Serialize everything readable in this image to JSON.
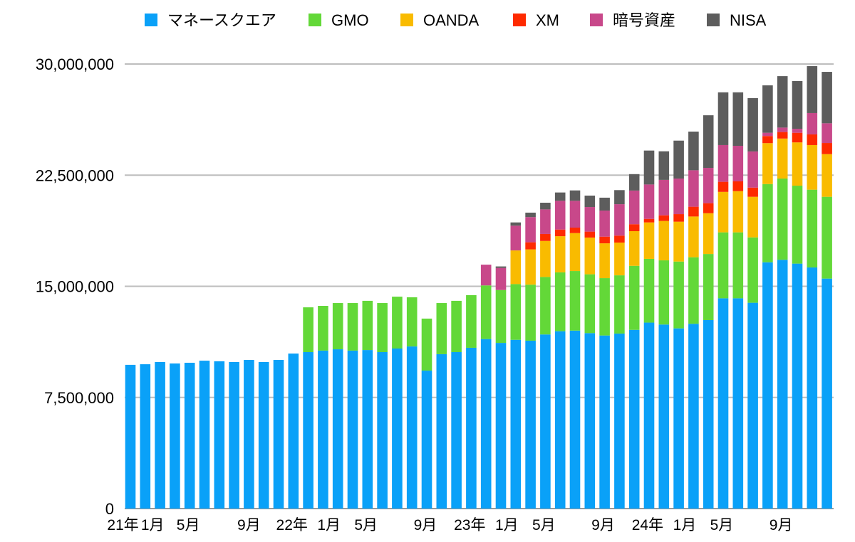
{
  "chart_data": {
    "type": "bar",
    "stacked": true,
    "title": "",
    "xlabel": "",
    "ylabel": "",
    "ylim": [
      0,
      30000000
    ],
    "y_ticks": [
      0,
      7500000,
      15000000,
      22500000,
      30000000
    ],
    "y_tick_labels": [
      "0",
      "7,500,000",
      "15,000,000",
      "22,500,000",
      "30,000,000"
    ],
    "grid": true,
    "legend_position": "top",
    "x_tick_labels": [
      {
        "label": "21年",
        "index": -0.5
      },
      {
        "label": "1月",
        "index": 1.5
      },
      {
        "label": "5月",
        "index": 3.9
      },
      {
        "label": "9月",
        "index": 8
      },
      {
        "label": "22年",
        "index": 10.9
      },
      {
        "label": "1月",
        "index": 13.4
      },
      {
        "label": "5月",
        "index": 15.9
      },
      {
        "label": "9月",
        "index": 19.9
      },
      {
        "label": "23年",
        "index": 22.9
      },
      {
        "label": "1月",
        "index": 25.4
      },
      {
        "label": "5月",
        "index": 27.9
      },
      {
        "label": "9月",
        "index": 31.9
      },
      {
        "label": "24年",
        "index": 34.9
      },
      {
        "label": "1月",
        "index": 37.4
      },
      {
        "label": "5月",
        "index": 39.9
      },
      {
        "label": "9月",
        "index": 43.9
      }
    ],
    "series": [
      {
        "name": "マネースクエア",
        "color": "#0aa1f8",
        "values": [
          9700000,
          9740000,
          9890000,
          9790000,
          9840000,
          9980000,
          9940000,
          9890000,
          10030000,
          9890000,
          10030000,
          10460000,
          10560000,
          10660000,
          10750000,
          10660000,
          10700000,
          10560000,
          10800000,
          10940000,
          9310000,
          10420000,
          10560000,
          10850000,
          11440000,
          11180000,
          11390000,
          11330000,
          11750000,
          11970000,
          12010000,
          11840000,
          11680000,
          11810000,
          12060000,
          12550000,
          12420000,
          12160000,
          12470000,
          12720000,
          14190000,
          14190000,
          13890000,
          16620000,
          16790000,
          16530000,
          16270000,
          15520000
        ]
      },
      {
        "name": "GMO",
        "color": "#63d838",
        "values": [
          0,
          0,
          0,
          0,
          0,
          0,
          0,
          0,
          0,
          0,
          0,
          0,
          3020000,
          3020000,
          3120000,
          3210000,
          3320000,
          3310000,
          3500000,
          3320000,
          3510000,
          3450000,
          3460000,
          3550000,
          3620000,
          3570000,
          3760000,
          3780000,
          3880000,
          3970000,
          4020000,
          3970000,
          3870000,
          3930000,
          4320000,
          4300000,
          4330000,
          4510000,
          4490000,
          4460000,
          4450000,
          4450000,
          4410000,
          5280000,
          5480000,
          5260000,
          5250000,
          5520000
        ]
      },
      {
        "name": "OANDA",
        "color": "#f9bb00",
        "values": [
          0,
          0,
          0,
          0,
          0,
          0,
          0,
          0,
          0,
          0,
          0,
          0,
          0,
          0,
          0,
          0,
          0,
          0,
          0,
          0,
          0,
          0,
          0,
          0,
          0,
          0,
          2270000,
          2380000,
          2430000,
          2440000,
          2560000,
          2480000,
          2350000,
          2210000,
          2340000,
          2460000,
          2660000,
          2690000,
          2750000,
          2750000,
          2730000,
          2780000,
          2740000,
          2760000,
          2700000,
          2920000,
          3010000,
          2880000
        ]
      },
      {
        "name": "XM",
        "color": "#fe2a00",
        "values": [
          0,
          0,
          0,
          0,
          0,
          0,
          0,
          0,
          0,
          0,
          0,
          0,
          0,
          0,
          0,
          0,
          0,
          0,
          0,
          0,
          0,
          0,
          0,
          0,
          0,
          0,
          0,
          480000,
          470000,
          450000,
          370000,
          400000,
          450000,
          470000,
          470000,
          240000,
          380000,
          510000,
          660000,
          680000,
          680000,
          660000,
          620000,
          480000,
          440000,
          650000,
          720000,
          750000
        ]
      },
      {
        "name": "暗号資産",
        "color": "#c8488a",
        "values": [
          0,
          0,
          0,
          0,
          0,
          0,
          0,
          0,
          0,
          0,
          0,
          0,
          0,
          0,
          0,
          0,
          0,
          0,
          0,
          0,
          0,
          0,
          0,
          0,
          1400000,
          1490000,
          1670000,
          1700000,
          1660000,
          1940000,
          1810000,
          1660000,
          1760000,
          2120000,
          2270000,
          2320000,
          2390000,
          2400000,
          2460000,
          2380000,
          2480000,
          2400000,
          2440000,
          220000,
          300000,
          270000,
          1440000,
          1330000
        ]
      },
      {
        "name": "NISA",
        "color": "#5d5d5d",
        "values": [
          0,
          0,
          0,
          0,
          0,
          0,
          0,
          0,
          0,
          0,
          0,
          0,
          0,
          0,
          0,
          0,
          0,
          0,
          0,
          0,
          0,
          0,
          0,
          0,
          0,
          100000,
          220000,
          300000,
          450000,
          560000,
          700000,
          770000,
          870000,
          950000,
          1110000,
          2290000,
          1930000,
          2560000,
          2610000,
          3550000,
          3560000,
          3610000,
          3600000,
          3200000,
          3470000,
          3220000,
          3170000,
          3470000
        ]
      }
    ]
  }
}
